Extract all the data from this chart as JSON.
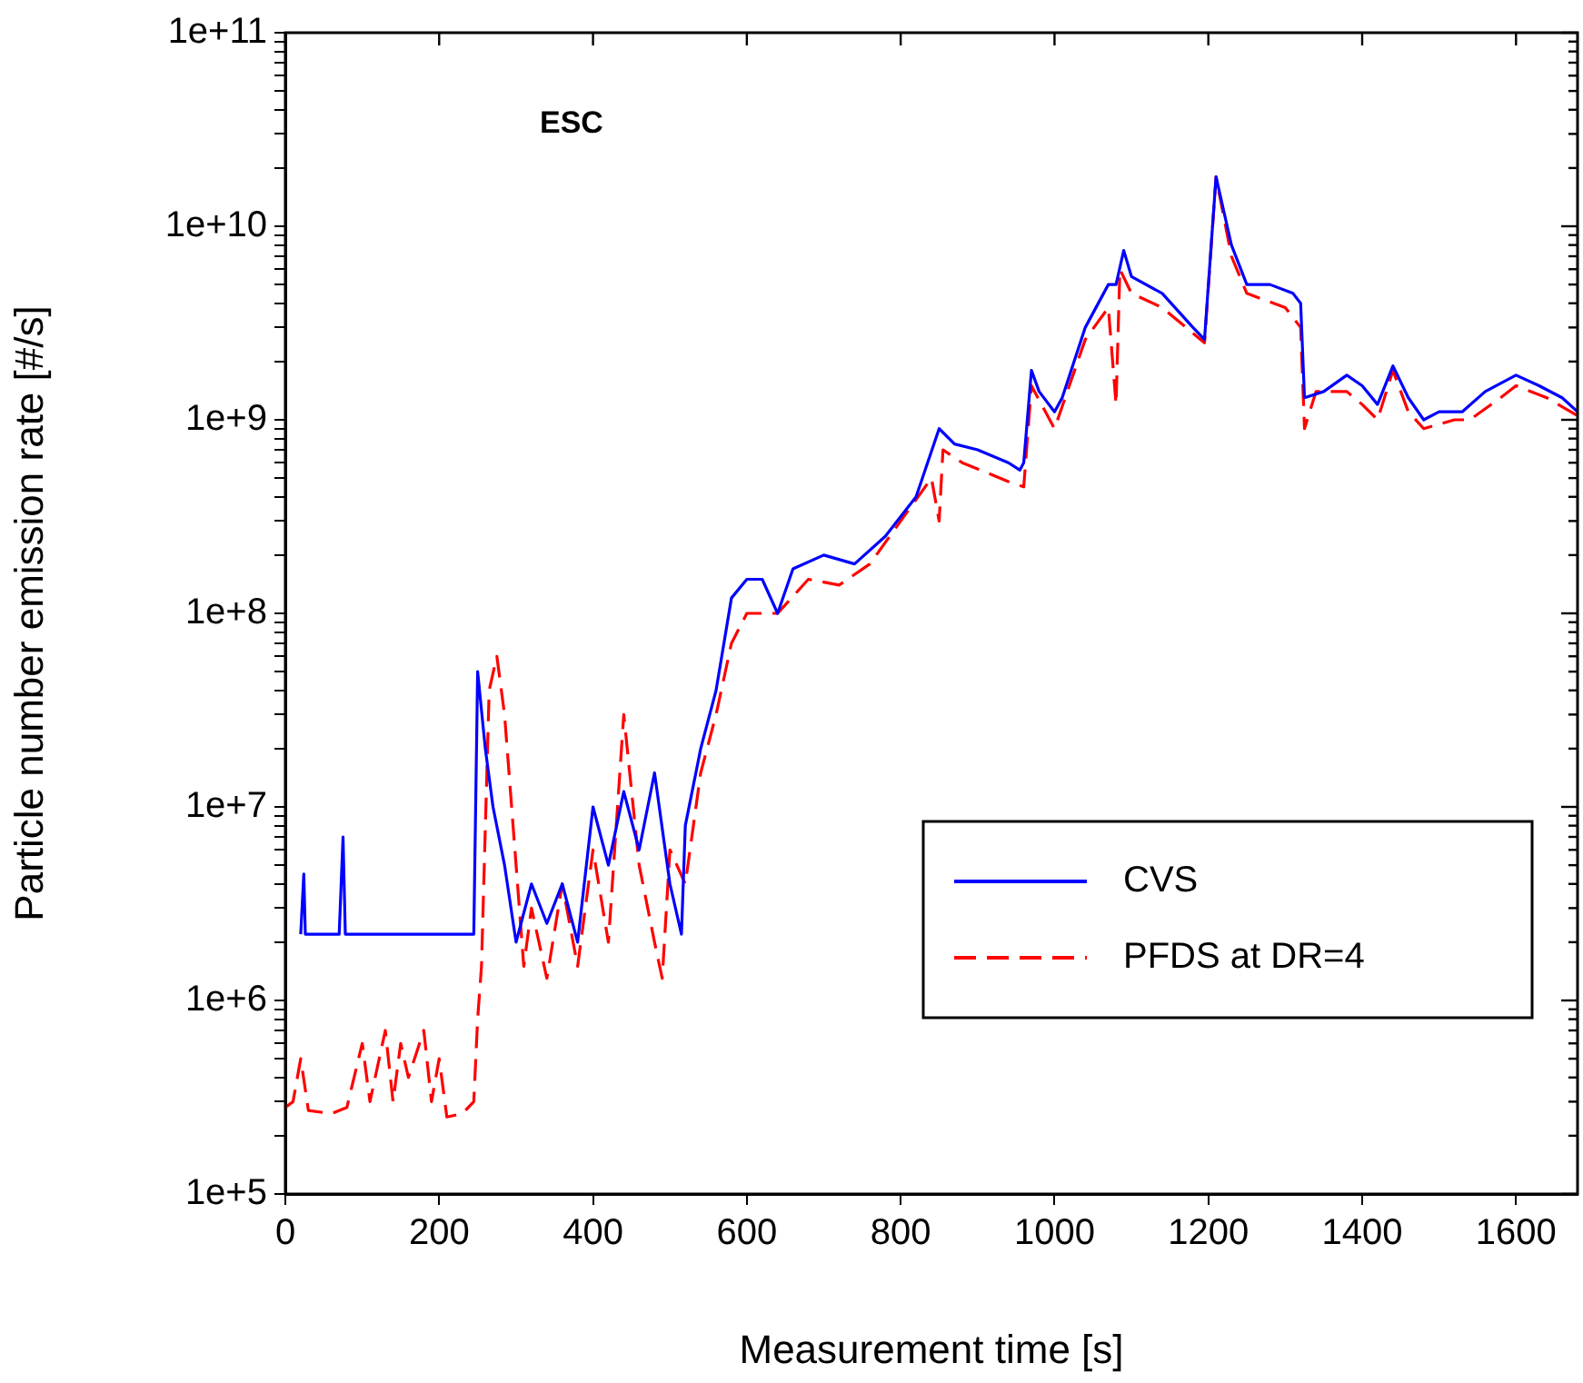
{
  "chart_data": {
    "type": "line",
    "xlabel": "Measurement time [s]",
    "ylabel": "Particle number emission rate [#/s]",
    "annotations": [
      "ESC"
    ],
    "log": "y",
    "grid": false,
    "legend": "bottom right",
    "marker": "none",
    "xlim": [
      0,
      1680
    ],
    "xticks": [
      0,
      200,
      400,
      600,
      800,
      1000,
      1200,
      1400,
      1600
    ],
    "ylim": [
      100000,
      100000000000
    ],
    "yticks": [
      {
        "value": 100000,
        "label": "1e+5"
      },
      {
        "value": 200000,
        "label": null
      },
      {
        "value": 300000,
        "label": null
      },
      {
        "value": 400000,
        "label": null
      },
      {
        "value": 500000,
        "label": null
      },
      {
        "value": 600000,
        "label": null
      },
      {
        "value": 700000,
        "label": null
      },
      {
        "value": 800000,
        "label": null
      },
      {
        "value": 900000,
        "label": null
      },
      {
        "value": 1000000,
        "label": "1e+6"
      },
      {
        "value": 2000000,
        "label": null
      },
      {
        "value": 3000000,
        "label": null
      },
      {
        "value": 4000000,
        "label": null
      },
      {
        "value": 5000000,
        "label": null
      },
      {
        "value": 6000000,
        "label": null
      },
      {
        "value": 7000000,
        "label": null
      },
      {
        "value": 8000000,
        "label": null
      },
      {
        "value": 9000000,
        "label": null
      },
      {
        "value": 10000000,
        "label": "1e+7"
      },
      {
        "value": 20000000,
        "label": null
      },
      {
        "value": 30000000,
        "label": null
      },
      {
        "value": 40000000,
        "label": null
      },
      {
        "value": 50000000,
        "label": null
      },
      {
        "value": 60000000,
        "label": null
      },
      {
        "value": 70000000,
        "label": null
      },
      {
        "value": 80000000,
        "label": null
      },
      {
        "value": 90000000,
        "label": null
      },
      {
        "value": 100000000,
        "label": "1e+8"
      },
      {
        "value": 200000000,
        "label": null
      },
      {
        "value": 300000000,
        "label": null
      },
      {
        "value": 400000000,
        "label": null
      },
      {
        "value": 500000000,
        "label": null
      },
      {
        "value": 600000000,
        "label": null
      },
      {
        "value": 700000000,
        "label": null
      },
      {
        "value": 800000000,
        "label": null
      },
      {
        "value": 900000000,
        "label": null
      },
      {
        "value": 1000000000,
        "label": "1e+9"
      },
      {
        "value": 2000000000,
        "label": null
      },
      {
        "value": 3000000000,
        "label": null
      },
      {
        "value": 4000000000,
        "label": null
      },
      {
        "value": 5000000000,
        "label": null
      },
      {
        "value": 6000000000,
        "label": null
      },
      {
        "value": 7000000000,
        "label": null
      },
      {
        "value": 8000000000,
        "label": null
      },
      {
        "value": 9000000000,
        "label": null
      },
      {
        "value": 10000000000,
        "label": "1e+10"
      },
      {
        "value": 20000000000,
        "label": null
      },
      {
        "value": 30000000000,
        "label": null
      },
      {
        "value": 40000000000,
        "label": null
      },
      {
        "value": 50000000000,
        "label": null
      },
      {
        "value": 60000000000,
        "label": null
      },
      {
        "value": 70000000000,
        "label": null
      },
      {
        "value": 80000000000,
        "label": null
      },
      {
        "value": 90000000000,
        "label": null
      },
      {
        "value": 100000000000,
        "label": "1e+11"
      }
    ],
    "series": [
      {
        "name": "CVS",
        "color": "#0000ff",
        "line_style": "solid",
        "x": [
          20,
          24,
          26,
          30,
          70,
          75,
          78,
          100,
          245,
          250,
          260,
          270,
          285,
          300,
          320,
          340,
          360,
          380,
          400,
          420,
          440,
          460,
          480,
          500,
          515,
          520,
          540,
          560,
          580,
          600,
          620,
          640,
          660,
          700,
          740,
          780,
          820,
          850,
          870,
          900,
          940,
          955,
          960,
          970,
          980,
          1000,
          1010,
          1040,
          1070,
          1080,
          1090,
          1100,
          1140,
          1180,
          1195,
          1210,
          1230,
          1250,
          1280,
          1310,
          1320,
          1325,
          1350,
          1380,
          1400,
          1420,
          1440,
          1460,
          1480,
          1500,
          1530,
          1560,
          1600,
          1630,
          1660,
          1680
        ],
        "values": [
          2200000,
          4500000,
          2200000,
          2200000,
          2200000,
          7000000,
          2200000,
          2200000,
          2200000,
          50000000,
          20000000,
          10000000,
          5000000,
          2000000,
          4000000,
          2500000,
          4000000,
          2000000,
          10000000,
          5000000,
          12000000,
          6000000,
          15000000,
          4000000,
          2200000,
          8000000,
          20000000,
          40000000,
          120000000,
          150000000,
          150000000,
          100000000,
          170000000,
          200000000,
          180000000,
          250000000,
          400000000,
          900000000,
          750000000,
          700000000,
          600000000,
          550000000,
          600000000,
          1800000000,
          1400000000,
          1100000000,
          1300000000,
          3000000000,
          5000000000,
          5000000000,
          7500000000,
          5500000000,
          4500000000,
          3000000000,
          2600000000,
          18000000000,
          8000000000,
          5000000000,
          5000000000,
          4500000000,
          4000000000,
          1300000000,
          1400000000,
          1700000000,
          1500000000,
          1200000000,
          1900000000,
          1300000000,
          1000000000,
          1100000000,
          1100000000,
          1400000000,
          1700000000,
          1500000000,
          1300000000,
          1100000000
        ]
      },
      {
        "name": "PFDS at DR=4",
        "color": "#ff0000",
        "line_style": "dashed",
        "x": [
          0,
          10,
          20,
          30,
          60,
          80,
          100,
          110,
          130,
          140,
          150,
          160,
          180,
          190,
          200,
          210,
          230,
          245,
          250,
          255,
          265,
          275,
          285,
          300,
          310,
          320,
          340,
          360,
          380,
          400,
          420,
          440,
          460,
          480,
          490,
          500,
          520,
          540,
          560,
          580,
          600,
          640,
          680,
          720,
          760,
          800,
          840,
          850,
          855,
          880,
          940,
          960,
          970,
          1000,
          1040,
          1070,
          1080,
          1085,
          1100,
          1140,
          1195,
          1210,
          1230,
          1250,
          1300,
          1320,
          1325,
          1340,
          1380,
          1400,
          1420,
          1440,
          1460,
          1480,
          1520,
          1540,
          1580,
          1600,
          1640,
          1680
        ],
        "values": [
          280000,
          300000,
          500000,
          270000,
          260000,
          280000,
          600000,
          300000,
          700000,
          300000,
          600000,
          400000,
          700000,
          300000,
          500000,
          250000,
          260000,
          300000,
          800000,
          1500000,
          40000000,
          60000000,
          30000000,
          5000000,
          1500000,
          3000000,
          1300000,
          4000000,
          1500000,
          6000000,
          2000000,
          30000000,
          5000000,
          2000000,
          1300000,
          6000000,
          4000000,
          15000000,
          30000000,
          70000000,
          100000000,
          100000000,
          150000000,
          140000000,
          180000000,
          300000000,
          500000000,
          300000000,
          700000000,
          600000000,
          480000000,
          450000000,
          1500000000,
          900000000,
          2600000000,
          3800000000,
          1200000000,
          6000000000,
          4500000000,
          3800000000,
          2500000000,
          18000000000,
          7000000000,
          4500000000,
          3800000000,
          3000000000,
          900000000,
          1400000000,
          1400000000,
          1200000000,
          1000000000,
          1800000000,
          1100000000,
          900000000,
          1000000000,
          1000000000,
          1300000000,
          1500000000,
          1300000000,
          1050000000
        ]
      }
    ]
  }
}
